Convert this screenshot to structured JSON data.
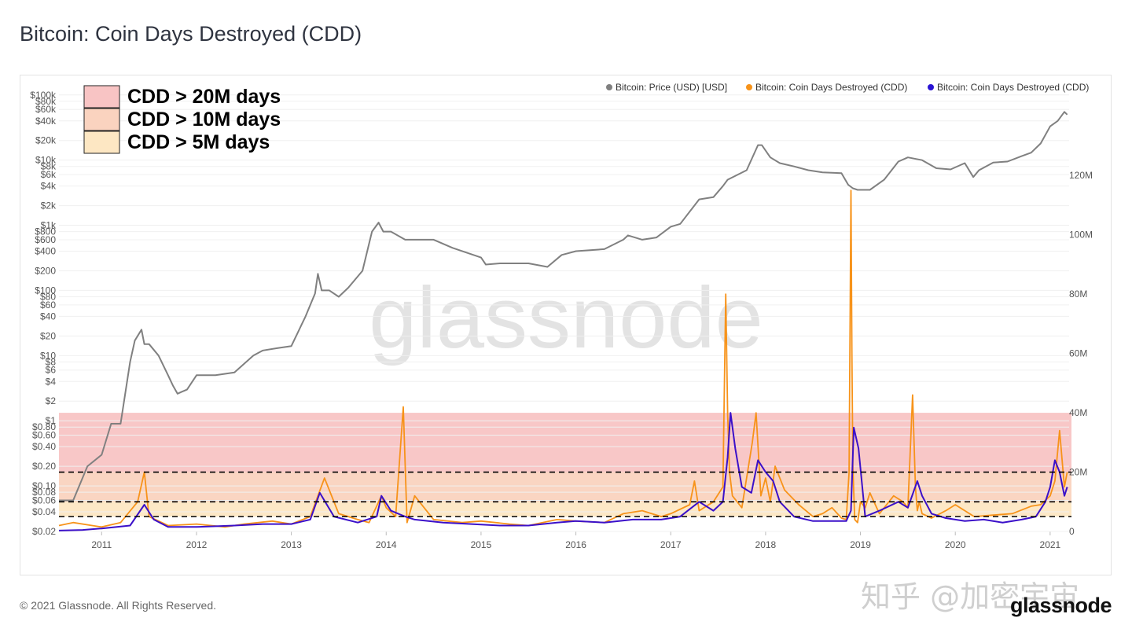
{
  "title": "Bitcoin: Coin Days Destroyed (CDD)",
  "footer": {
    "copyright": "© 2021 Glassnode. All Rights Reserved.",
    "logo": "glassnode"
  },
  "watermark": "glassnode",
  "overlay_watermark": "知乎 @加密宇宙",
  "colors": {
    "price": "#808080",
    "cdd_raw": "#f7931a",
    "cdd_ma": "#3b10c9",
    "band20": "#f8c4c4",
    "band10": "#fad3bf",
    "band5": "#fde7c3"
  },
  "chart_data": {
    "type": "line",
    "title": "Bitcoin: Coin Days Destroyed (CDD)",
    "legend_position": "top-right",
    "legend": [
      {
        "name": "Bitcoin: Price (USD) [USD]",
        "color": "#808080"
      },
      {
        "name": "Bitcoin: Coin Days Destroyed (CDD)",
        "color": "#f7931a"
      },
      {
        "name": "Bitcoin: Coin Days Destroyed (CDD)",
        "color": "#2a14d4"
      }
    ],
    "threshold_legend": [
      {
        "label": "CDD > 20M days",
        "color": "#f8c4c4"
      },
      {
        "label": "CDD > 10M days",
        "color": "#fad3bf"
      },
      {
        "label": "CDD > 5M days",
        "color": "#fde7c3"
      }
    ],
    "thresholds": [
      5000000,
      10000000,
      20000000
    ],
    "band_top": 40000000,
    "x_range": [
      2010.55,
      2021.2
    ],
    "x_ticks": [
      "2011",
      "2012",
      "2013",
      "2014",
      "2015",
      "2016",
      "2017",
      "2018",
      "2019",
      "2020",
      "2021"
    ],
    "y_left": {
      "scale": "log",
      "range": [
        0.02,
        135000
      ],
      "ticks": [
        {
          "v": 0.02,
          "l": "$0.02"
        },
        {
          "v": 0.04,
          "l": "$0.04"
        },
        {
          "v": 0.06,
          "l": "$0.06"
        },
        {
          "v": 0.08,
          "l": "$0.08"
        },
        {
          "v": 0.1,
          "l": "$0.10"
        },
        {
          "v": 0.2,
          "l": "$0.20"
        },
        {
          "v": 0.4,
          "l": "$0.40"
        },
        {
          "v": 0.6,
          "l": "$0.60"
        },
        {
          "v": 0.8,
          "l": "$0.80"
        },
        {
          "v": 1,
          "l": "$1"
        },
        {
          "v": 2,
          "l": "$2"
        },
        {
          "v": 4,
          "l": "$4"
        },
        {
          "v": 6,
          "l": "$6"
        },
        {
          "v": 8,
          "l": "$8"
        },
        {
          "v": 10,
          "l": "$10"
        },
        {
          "v": 20,
          "l": "$20"
        },
        {
          "v": 40,
          "l": "$40"
        },
        {
          "v": 60,
          "l": "$60"
        },
        {
          "v": 80,
          "l": "$80"
        },
        {
          "v": 100,
          "l": "$100"
        },
        {
          "v": 200,
          "l": "$200"
        },
        {
          "v": 400,
          "l": "$400"
        },
        {
          "v": 600,
          "l": "$600"
        },
        {
          "v": 800,
          "l": "$800"
        },
        {
          "v": 1000,
          "l": "$1k"
        },
        {
          "v": 2000,
          "l": "$2k"
        },
        {
          "v": 4000,
          "l": "$4k"
        },
        {
          "v": 6000,
          "l": "$6k"
        },
        {
          "v": 8000,
          "l": "$8k"
        },
        {
          "v": 10000,
          "l": "$10k"
        },
        {
          "v": 20000,
          "l": "$20k"
        },
        {
          "v": 40000,
          "l": "$40k"
        },
        {
          "v": 60000,
          "l": "$60k"
        },
        {
          "v": 80000,
          "l": "$80k"
        },
        {
          "v": 100000,
          "l": "$100k"
        }
      ]
    },
    "y_right": {
      "scale": "linear",
      "range": [
        0,
        150000000
      ],
      "ticks": [
        {
          "v": 0,
          "l": "0"
        },
        {
          "v": 20000000,
          "l": "20M"
        },
        {
          "v": 40000000,
          "l": "40M"
        },
        {
          "v": 60000000,
          "l": "60M"
        },
        {
          "v": 80000000,
          "l": "80M"
        },
        {
          "v": 100000000,
          "l": "100M"
        },
        {
          "v": 120000000,
          "l": "120M"
        }
      ]
    },
    "price": {
      "x": [
        2010.55,
        2010.7,
        2010.85,
        2011.0,
        2011.1,
        2011.2,
        2011.3,
        2011.35,
        2011.42,
        2011.45,
        2011.5,
        2011.6,
        2011.7,
        2011.75,
        2011.8,
        2011.85,
        2011.9,
        2012.0,
        2012.2,
        2012.4,
        2012.6,
        2012.7,
        2012.85,
        2013.0,
        2013.15,
        2013.25,
        2013.28,
        2013.32,
        2013.4,
        2013.5,
        2013.6,
        2013.75,
        2013.85,
        2013.92,
        2013.97,
        2014.05,
        2014.2,
        2014.35,
        2014.5,
        2014.7,
        2014.85,
        2015.0,
        2015.05,
        2015.2,
        2015.5,
        2015.7,
        2015.85,
        2016.0,
        2016.3,
        2016.5,
        2016.55,
        2016.7,
        2016.85,
        2017.0,
        2017.1,
        2017.3,
        2017.45,
        2017.55,
        2017.6,
        2017.8,
        2017.92,
        2017.96,
        2018.05,
        2018.15,
        2018.3,
        2018.45,
        2018.6,
        2018.8,
        2018.87,
        2018.92,
        2018.97,
        2019.1,
        2019.25,
        2019.4,
        2019.5,
        2019.65,
        2019.8,
        2019.95,
        2020.1,
        2020.19,
        2020.25,
        2020.4,
        2020.55,
        2020.7,
        2020.8,
        2020.9,
        2021.0,
        2021.08,
        2021.15,
        2021.18
      ],
      "y": [
        0.06,
        0.06,
        0.2,
        0.3,
        0.9,
        0.9,
        8,
        17,
        25,
        15,
        15,
        10,
        5,
        3.5,
        2.6,
        2.8,
        3.0,
        5,
        5,
        5.5,
        10,
        12,
        13,
        14,
        40,
        90,
        180,
        100,
        100,
        80,
        110,
        200,
        800,
        1100,
        800,
        800,
        600,
        600,
        600,
        450,
        380,
        320,
        250,
        260,
        260,
        230,
        350,
        400,
        430,
        600,
        700,
        600,
        650,
        950,
        1050,
        2500,
        2700,
        4000,
        5000,
        7000,
        17000,
        17000,
        11000,
        9000,
        8000,
        7000,
        6500,
        6300,
        4200,
        3700,
        3500,
        3500,
        5000,
        9500,
        11000,
        10000,
        7500,
        7200,
        9000,
        5500,
        7000,
        9200,
        9500,
        11500,
        13000,
        18000,
        33000,
        40000,
        55000,
        50000
      ],
      "_note_omit": null
    },
    "cdd_raw": {
      "x": [
        2010.55,
        2010.7,
        2010.9,
        2011.0,
        2011.2,
        2011.38,
        2011.45,
        2011.5,
        2011.7,
        2012.0,
        2012.3,
        2012.5,
        2012.8,
        2013.0,
        2013.2,
        2013.28,
        2013.35,
        2013.5,
        2013.7,
        2013.82,
        2013.95,
        2014.0,
        2014.1,
        2014.18,
        2014.22,
        2014.3,
        2014.5,
        2014.8,
        2015.0,
        2015.3,
        2015.5,
        2015.8,
        2016.0,
        2016.3,
        2016.5,
        2016.7,
        2016.9,
        2017.0,
        2017.2,
        2017.25,
        2017.3,
        2017.45,
        2017.55,
        2017.58,
        2017.6,
        2017.62,
        2017.65,
        2017.75,
        2017.86,
        2017.9,
        2017.95,
        2018.0,
        2018.05,
        2018.1,
        2018.2,
        2018.35,
        2018.5,
        2018.6,
        2018.7,
        2018.8,
        2018.85,
        2018.88,
        2018.9,
        2018.91,
        2018.92,
        2018.94,
        2018.97,
        2019.0,
        2019.05,
        2019.1,
        2019.2,
        2019.35,
        2019.45,
        2019.5,
        2019.55,
        2019.58,
        2019.6,
        2019.62,
        2019.65,
        2019.75,
        2019.9,
        2020.0,
        2020.2,
        2020.4,
        2020.6,
        2020.8,
        2020.9,
        2021.0,
        2021.05,
        2021.1,
        2021.15,
        2021.18
      ],
      "y": [
        2000000,
        3000000,
        2000000,
        1500000,
        3000000,
        10000000,
        20000000,
        5000000,
        2000000,
        2500000,
        1500000,
        2500000,
        3500000,
        2500000,
        5000000,
        12000000,
        18000000,
        6000000,
        4000000,
        3000000,
        12000000,
        8000000,
        5000000,
        42000000,
        3000000,
        12000000,
        4000000,
        3000000,
        3500000,
        2500000,
        2000000,
        4000000,
        3500000,
        3000000,
        6000000,
        7000000,
        5000000,
        6000000,
        9000000,
        17000000,
        7000000,
        10000000,
        15000000,
        80000000,
        40000000,
        20000000,
        12000000,
        8000000,
        30000000,
        40000000,
        12000000,
        18000000,
        10000000,
        22000000,
        14000000,
        9000000,
        5000000,
        6000000,
        8000000,
        4500000,
        4000000,
        20000000,
        115000000,
        60000000,
        22000000,
        4000000,
        3000000,
        10000000,
        8000000,
        13000000,
        6000000,
        12000000,
        10000000,
        8000000,
        46000000,
        15000000,
        7000000,
        10000000,
        6000000,
        4500000,
        7000000,
        9000000,
        5000000,
        5500000,
        6000000,
        8500000,
        9000000,
        12000000,
        17000000,
        34000000,
        15000000,
        20000000
      ]
    },
    "cdd_ma": {
      "x": [
        2010.55,
        2010.8,
        2011.0,
        2011.3,
        2011.45,
        2011.55,
        2011.7,
        2012.0,
        2012.4,
        2012.7,
        2013.0,
        2013.2,
        2013.3,
        2013.45,
        2013.7,
        2013.9,
        2013.95,
        2014.05,
        2014.2,
        2014.3,
        2014.6,
        2014.9,
        2015.2,
        2015.5,
        2015.8,
        2016.0,
        2016.3,
        2016.6,
        2016.9,
        2017.1,
        2017.3,
        2017.45,
        2017.55,
        2017.6,
        2017.63,
        2017.68,
        2017.75,
        2017.85,
        2017.92,
        2018.0,
        2018.08,
        2018.15,
        2018.3,
        2018.5,
        2018.7,
        2018.85,
        2018.9,
        2018.93,
        2018.98,
        2019.05,
        2019.2,
        2019.4,
        2019.5,
        2019.6,
        2019.65,
        2019.75,
        2019.9,
        2020.1,
        2020.3,
        2020.5,
        2020.7,
        2020.85,
        2020.95,
        2021.0,
        2021.05,
        2021.1,
        2021.15,
        2021.18
      ],
      "y": [
        300000,
        500000,
        1000000,
        2000000,
        9000000,
        4000000,
        1500000,
        1500000,
        2000000,
        2500000,
        2500000,
        4000000,
        13000000,
        5000000,
        3000000,
        5000000,
        12000000,
        7000000,
        5000000,
        4000000,
        3000000,
        2500000,
        2000000,
        2000000,
        3000000,
        3500000,
        3000000,
        4000000,
        4000000,
        5000000,
        10000000,
        7000000,
        10000000,
        25000000,
        40000000,
        28000000,
        15000000,
        13000000,
        24000000,
        20000000,
        17000000,
        10000000,
        5000000,
        3500000,
        3500000,
        3500000,
        7000000,
        35000000,
        28000000,
        5000000,
        7000000,
        10000000,
        8000000,
        17000000,
        12000000,
        6000000,
        4500000,
        3500000,
        4000000,
        3000000,
        4000000,
        5000000,
        10000000,
        15000000,
        24000000,
        20000000,
        12000000,
        15000000
      ]
    }
  }
}
